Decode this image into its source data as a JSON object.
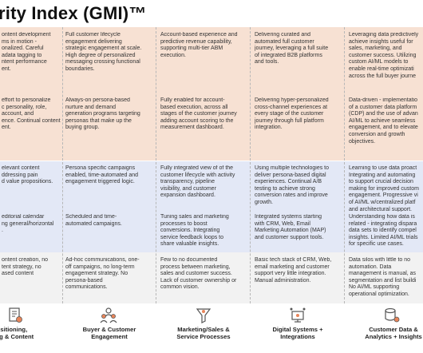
{
  "title": "rity Index (GMI)™",
  "rows": [
    [
      "ontent development\nms in motion -\nonalized. Careful\nadata tagging to\nntent performance\nent.",
      "Full customer lifecycle\nengagement delivering\nstrategic engagement at scale.\nHigh degree of personalized\nmessaging crossing functional\nboundaries.",
      "Account-based experience and\npredictive revenue capability,\nsupporting multi-tier ABM\nexecution.",
      "Delivering curated and\nautomated full customer\njourney, leveraging  a full suite\nof integrated B2B platforms\nand tools.",
      "Leveraging data predictively\nachieve insights useful for\nsales, marketing, and\ncustomer success. Utilizing\ncustom AI/ML models to\nenable real-time optimizati\nacross the full buyer journe"
    ],
    [
      "effort to personalize\nc personality, role,\naccount, and\nence. Continual content\nent.",
      "Always-on persona-based\nnurture and demand\ngeneration programs targeting\npersonas that make up the\nbuying group.",
      "Fully enabled for account-\nbased execution, across all\nstages of the customer journey\nadding account scoring to the\nmeasurement dashboard.",
      "Delivering hyper-personalized\ncross-channel experiences at\nevery stage of the customer\njourney through full platform\nintegration.",
      "Data-driven - implementatio\nof a customer data platform\n(CDP) and the use of advan\nAI/ML to achieve seamless\nengagement, and to elevate\nconversion and growth\nobjectives."
    ],
    [
      "elevant content\nddressing pain\nd value propositions.",
      "Persona specific campaigns\nenabled, time-automated and\nengagement triggered logic.",
      "Fully integrated view of of the\ncustomer lifecycle with activity\ntransparency, pipeline\nvisibility, and customer\nexpansion dashboard.",
      "Using multiple technologies to\ndeliver persona-based digital\nexperiences. Continual A/B\ntesting to achieve strong\nconversion rates and improve\ngrowth.",
      "Learning to use data proact\nIntegrating and automating\nto support crucial decision\nmaking for improved custom\nengagement. Progressive vi\nof AI/ML w/centralized platf\nand architectural support."
    ],
    [
      "editorial calendar\nng general/horizontal\n.",
      "Scheduled and time-\nautomated campaigns.",
      "Tuning sales and marketing\nprocesses to boost\nconversions. Integrating\nservice feedback loops to\nshare valuable insights.",
      "Integrated systems starting\nwith CRM, Web, Email\nMarketing Automation (MAP)\nand customer support tools.",
      "Understanding how data is\nrelated - integrating dispara\ndata sets to identify compel\ninsights. Limited AI/ML trials\nfor specific use cases."
    ],
    [
      "ontent creation, no\ntent strategy, no\nased content",
      "Ad-hoc communications, one-\noff campaigns, no long-term\nengagement strategy. No\npersona-based\ncommunications.",
      "Few to no documented\nprocess between marketing,\nsales and customer success.\nLack of customer ownership or\ncommon vision.",
      "Basic tech  stack of CRM, Web,\nemail marketing and customer\nsupport very little integration.\nManual administration.",
      "Data silos with little to no\nautomation. Data\nmanagement is manual, as\nsegmentation and list buildi\nNo AI/ML supporting\noperational optimization."
    ]
  ],
  "footer": [
    {
      "label": "ositioning,\nging & Content",
      "icon": "content-doc-icon"
    },
    {
      "label": "Buyer & Customer\nEngagement",
      "icon": "buyer-group-icon"
    },
    {
      "label": "Marketing/Sales &\nService Processes",
      "icon": "funnel-gear-icon"
    },
    {
      "label": "Digital Systems +\nIntegrations",
      "icon": "network-monitor-icon"
    },
    {
      "label": "Customer Data &\nAnalytics + Insights",
      "icon": "data-analytics-icon"
    }
  ]
}
